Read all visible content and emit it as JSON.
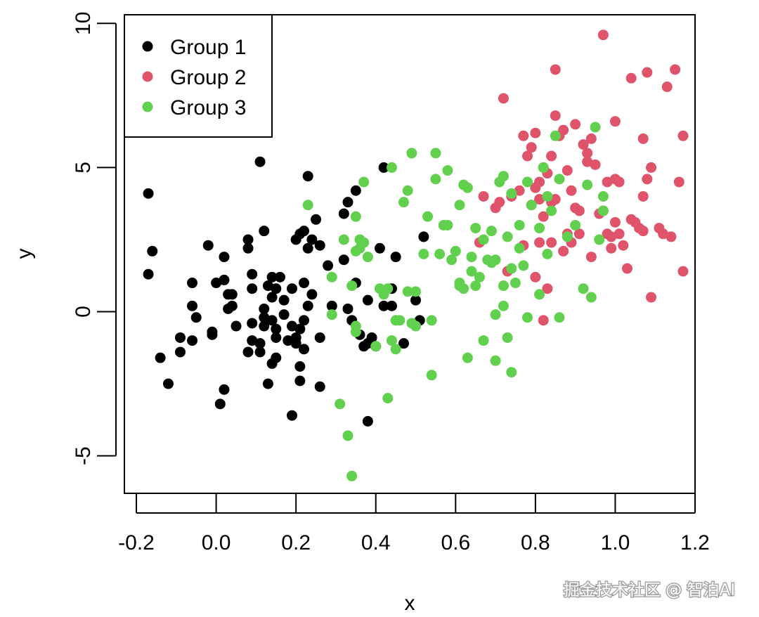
{
  "chart_data": {
    "type": "scatter",
    "title": "",
    "xlabel": "x",
    "ylabel": "y",
    "xlim": [
      -0.23,
      1.2
    ],
    "ylim": [
      -6.3,
      10.3
    ],
    "xticks": [
      -0.2,
      0.0,
      0.2,
      0.4,
      0.6,
      0.8,
      1.0,
      1.2
    ],
    "xtick_labels": [
      "-0.2",
      "0.0",
      "0.2",
      "0.4",
      "0.6",
      "0.8",
      "1.0",
      "1.2"
    ],
    "yticks": [
      -5,
      0,
      5,
      10
    ],
    "ytick_labels": [
      "-5",
      "0",
      "5",
      "10"
    ],
    "legend_position": "top-left",
    "series": [
      {
        "name": "Group 1",
        "color": "#000000",
        "points": [
          [
            -0.17,
            4.1
          ],
          [
            -0.16,
            2.1
          ],
          [
            -0.17,
            1.3
          ],
          [
            -0.14,
            -1.6
          ],
          [
            -0.12,
            -2.5
          ],
          [
            -0.09,
            -1.4
          ],
          [
            -0.09,
            -0.9
          ],
          [
            -0.06,
            1.0
          ],
          [
            -0.06,
            0.2
          ],
          [
            -0.05,
            -0.2
          ],
          [
            -0.06,
            -1.0
          ],
          [
            -0.02,
            2.3
          ],
          [
            -0.01,
            -0.7
          ],
          [
            -0.01,
            -0.8
          ],
          [
            0.0,
            1.0
          ],
          [
            0.02,
            1.9
          ],
          [
            0.02,
            1.1
          ],
          [
            0.03,
            0.6
          ],
          [
            0.03,
            0.1
          ],
          [
            0.04,
            0.6
          ],
          [
            0.04,
            0.2
          ],
          [
            0.05,
            -0.5
          ],
          [
            0.01,
            -3.2
          ],
          [
            0.02,
            -2.7
          ],
          [
            0.08,
            2.5
          ],
          [
            0.08,
            2.2
          ],
          [
            0.09,
            1.3
          ],
          [
            0.09,
            0.8
          ],
          [
            0.08,
            -1.4
          ],
          [
            0.09,
            -1.0
          ],
          [
            0.09,
            -0.4
          ],
          [
            0.11,
            5.2
          ],
          [
            0.12,
            0.1
          ],
          [
            0.12,
            -0.2
          ],
          [
            0.12,
            -0.5
          ],
          [
            0.11,
            -1.1
          ],
          [
            0.11,
            -1.4
          ],
          [
            0.13,
            -2.5
          ],
          [
            0.12,
            2.8
          ],
          [
            0.13,
            0.9
          ],
          [
            0.14,
            1.2
          ],
          [
            0.14,
            0.5
          ],
          [
            0.15,
            0.8
          ],
          [
            0.14,
            -0.3
          ],
          [
            0.15,
            -0.6
          ],
          [
            0.14,
            -1.8
          ],
          [
            0.15,
            -1.6
          ],
          [
            0.15,
            -0.9
          ],
          [
            0.16,
            1.2
          ],
          [
            0.17,
            0.4
          ],
          [
            0.17,
            -0.1
          ],
          [
            0.18,
            -1.0
          ],
          [
            0.19,
            -0.5
          ],
          [
            0.19,
            0.8
          ],
          [
            0.2,
            2.5
          ],
          [
            0.2,
            -0.9
          ],
          [
            0.2,
            -1.1
          ],
          [
            0.19,
            -3.6
          ],
          [
            0.21,
            2.7
          ],
          [
            0.21,
            -0.6
          ],
          [
            0.21,
            -1.9
          ],
          [
            0.21,
            -2.4
          ],
          [
            0.22,
            2.8
          ],
          [
            0.22,
            1.0
          ],
          [
            0.22,
            -0.3
          ],
          [
            0.22,
            -1.3
          ],
          [
            0.23,
            2.2
          ],
          [
            0.23,
            4.7
          ],
          [
            0.23,
            0.2
          ],
          [
            0.24,
            2.5
          ],
          [
            0.24,
            0.6
          ],
          [
            0.25,
            3.2
          ],
          [
            0.26,
            2.3
          ],
          [
            0.26,
            -0.9
          ],
          [
            0.26,
            -2.6
          ],
          [
            0.28,
            1.6
          ],
          [
            0.29,
            0.2
          ],
          [
            0.32,
            3.4
          ],
          [
            0.32,
            1.8
          ],
          [
            0.33,
            3.8
          ],
          [
            0.33,
            0.1
          ],
          [
            0.34,
            -0.3
          ],
          [
            0.35,
            4.2
          ],
          [
            0.35,
            1.0
          ],
          [
            0.36,
            -0.8
          ],
          [
            0.37,
            -1.2
          ],
          [
            0.38,
            0.4
          ],
          [
            0.38,
            -1.1
          ],
          [
            0.38,
            -3.8
          ],
          [
            0.39,
            -0.9
          ],
          [
            0.4,
            -1.2
          ],
          [
            0.41,
            2.2
          ],
          [
            0.42,
            5.0
          ],
          [
            0.42,
            0.2
          ],
          [
            0.44,
            0.2
          ],
          [
            0.44,
            0.8
          ],
          [
            0.45,
            1.9
          ],
          [
            0.47,
            -1.1
          ],
          [
            0.5,
            0.4
          ],
          [
            0.51,
            -0.3
          ],
          [
            0.52,
            2.6
          ]
        ]
      },
      {
        "name": "Group 2",
        "color": "#DF536B",
        "points": [
          [
            0.7,
            3.6
          ],
          [
            0.71,
            3.8
          ],
          [
            0.72,
            7.4
          ],
          [
            0.73,
            1.4
          ],
          [
            0.74,
            4.0
          ],
          [
            0.77,
            6.1
          ],
          [
            0.77,
            2.3
          ],
          [
            0.78,
            5.4
          ],
          [
            0.79,
            5.7
          ],
          [
            0.8,
            6.2
          ],
          [
            0.8,
            4.3
          ],
          [
            0.8,
            1.2
          ],
          [
            0.81,
            3.9
          ],
          [
            0.81,
            2.4
          ],
          [
            0.81,
            4.5
          ],
          [
            0.82,
            5.0
          ],
          [
            0.82,
            3.3
          ],
          [
            0.83,
            4.8
          ],
          [
            0.83,
            0.8
          ],
          [
            0.82,
            -0.3
          ],
          [
            0.84,
            5.4
          ],
          [
            0.84,
            2.4
          ],
          [
            0.85,
            8.4
          ],
          [
            0.85,
            6.8
          ],
          [
            0.85,
            3.9
          ],
          [
            0.86,
            6.1
          ],
          [
            0.87,
            6.3
          ],
          [
            0.87,
            2.1
          ],
          [
            0.88,
            4.9
          ],
          [
            0.88,
            2.7
          ],
          [
            0.89,
            2.4
          ],
          [
            0.89,
            4.2
          ],
          [
            0.9,
            6.5
          ],
          [
            0.9,
            3.6
          ],
          [
            0.91,
            3.5
          ],
          [
            0.91,
            2.7
          ],
          [
            0.92,
            5.8
          ],
          [
            0.93,
            5.5
          ],
          [
            0.93,
            5.2
          ],
          [
            0.94,
            6.0
          ],
          [
            0.94,
            1.9
          ],
          [
            0.95,
            5.1
          ],
          [
            0.96,
            3.4
          ],
          [
            0.97,
            9.6
          ],
          [
            0.97,
            3.5
          ],
          [
            0.98,
            2.7
          ],
          [
            0.98,
            4.5
          ],
          [
            0.99,
            2.2
          ],
          [
            0.99,
            2.6
          ],
          [
            1.0,
            6.6
          ],
          [
            1.0,
            4.6
          ],
          [
            1.0,
            3.1
          ],
          [
            1.01,
            4.5
          ],
          [
            1.01,
            2.7
          ],
          [
            1.02,
            2.3
          ],
          [
            1.03,
            1.5
          ],
          [
            1.04,
            8.1
          ],
          [
            1.04,
            3.2
          ],
          [
            1.05,
            3.1
          ],
          [
            1.06,
            2.9
          ],
          [
            1.07,
            6.0
          ],
          [
            1.07,
            4.0
          ],
          [
            1.07,
            2.8
          ],
          [
            1.08,
            8.3
          ],
          [
            1.08,
            4.6
          ],
          [
            1.09,
            5.0
          ],
          [
            1.09,
            0.5
          ],
          [
            1.11,
            2.9
          ],
          [
            1.12,
            2.7
          ],
          [
            1.13,
            7.8
          ],
          [
            1.14,
            2.6
          ],
          [
            1.15,
            8.4
          ],
          [
            1.16,
            4.5
          ],
          [
            1.17,
            6.1
          ],
          [
            1.17,
            1.4
          ],
          [
            0.66,
            2.4
          ],
          [
            0.67,
            4.0
          ],
          [
            0.76,
            4.2
          ],
          [
            0.79,
            3.7
          ],
          [
            0.84,
            3.8
          ]
        ]
      },
      {
        "name": "Group 3",
        "color": "#61D04F",
        "points": [
          [
            0.23,
            3.7
          ],
          [
            0.29,
            1.2
          ],
          [
            0.29,
            -0.1
          ],
          [
            0.31,
            -3.2
          ],
          [
            0.32,
            2.5
          ],
          [
            0.33,
            -4.3
          ],
          [
            0.34,
            0.9
          ],
          [
            0.34,
            -5.7
          ],
          [
            0.35,
            3.3
          ],
          [
            0.35,
            2.1
          ],
          [
            0.35,
            -0.5
          ],
          [
            0.35,
            -0.7
          ],
          [
            0.36,
            2.5
          ],
          [
            0.36,
            2.2
          ],
          [
            0.37,
            4.5
          ],
          [
            0.37,
            2.4
          ],
          [
            0.38,
            1.9
          ],
          [
            0.4,
            -1.2
          ],
          [
            0.41,
            0.8
          ],
          [
            0.42,
            0.6
          ],
          [
            0.43,
            -3.0
          ],
          [
            0.43,
            0.8
          ],
          [
            0.44,
            5.0
          ],
          [
            0.44,
            -1.0
          ],
          [
            0.45,
            -1.3
          ],
          [
            0.45,
            -0.3
          ],
          [
            0.46,
            -0.3
          ],
          [
            0.47,
            3.8
          ],
          [
            0.48,
            4.2
          ],
          [
            0.48,
            0.7
          ],
          [
            0.49,
            5.5
          ],
          [
            0.49,
            -0.4
          ],
          [
            0.5,
            0.7
          ],
          [
            0.5,
            -0.5
          ],
          [
            0.52,
            2.0
          ],
          [
            0.53,
            3.3
          ],
          [
            0.54,
            -2.2
          ],
          [
            0.54,
            -0.3
          ],
          [
            0.55,
            5.5
          ],
          [
            0.55,
            4.6
          ],
          [
            0.56,
            2.0
          ],
          [
            0.57,
            3.0
          ],
          [
            0.58,
            4.9
          ],
          [
            0.58,
            3.0
          ],
          [
            0.59,
            1.8
          ],
          [
            0.6,
            2.1
          ],
          [
            0.61,
            3.7
          ],
          [
            0.61,
            1.0
          ],
          [
            0.61,
            0.9
          ],
          [
            0.62,
            4.4
          ],
          [
            0.62,
            0.8
          ],
          [
            0.63,
            4.3
          ],
          [
            0.63,
            -1.6
          ],
          [
            0.64,
            1.9
          ],
          [
            0.64,
            1.4
          ],
          [
            0.65,
            2.9
          ],
          [
            0.65,
            0.9
          ],
          [
            0.66,
            1.2
          ],
          [
            0.67,
            2.5
          ],
          [
            0.67,
            -1.0
          ],
          [
            0.68,
            1.8
          ],
          [
            0.69,
            2.8
          ],
          [
            0.69,
            1.7
          ],
          [
            0.7,
            -0.1
          ],
          [
            0.7,
            -1.7
          ],
          [
            0.7,
            1.8
          ],
          [
            0.71,
            4.5
          ],
          [
            0.72,
            4.7
          ],
          [
            0.72,
            0.9
          ],
          [
            0.72,
            0.2
          ],
          [
            0.73,
            2.6
          ],
          [
            0.73,
            -0.9
          ],
          [
            0.74,
            4.1
          ],
          [
            0.74,
            1.5
          ],
          [
            0.74,
            -2.1
          ],
          [
            0.75,
            1.0
          ],
          [
            0.76,
            3.0
          ],
          [
            0.76,
            2.2
          ],
          [
            0.77,
            1.6
          ],
          [
            0.78,
            4.5
          ],
          [
            0.78,
            -0.2
          ],
          [
            0.79,
            3.7
          ],
          [
            0.81,
            2.9
          ],
          [
            0.81,
            0.6
          ],
          [
            0.82,
            5.0
          ],
          [
            0.83,
            4.0
          ],
          [
            0.83,
            2.0
          ],
          [
            0.84,
            3.5
          ],
          [
            0.85,
            6.1
          ],
          [
            0.86,
            -0.2
          ],
          [
            0.86,
            4.6
          ],
          [
            0.88,
            2.6
          ],
          [
            0.9,
            3.0
          ],
          [
            0.92,
            0.8
          ],
          [
            0.93,
            4.4
          ],
          [
            0.94,
            0.5
          ],
          [
            0.95,
            6.4
          ],
          [
            0.96,
            2.5
          ],
          [
            0.97,
            3.5
          ],
          [
            0.97,
            4.0
          ]
        ]
      }
    ]
  },
  "watermark": {
    "text": "掘金技术社区 @ 智泊AI",
    "color": "#ffffff"
  }
}
